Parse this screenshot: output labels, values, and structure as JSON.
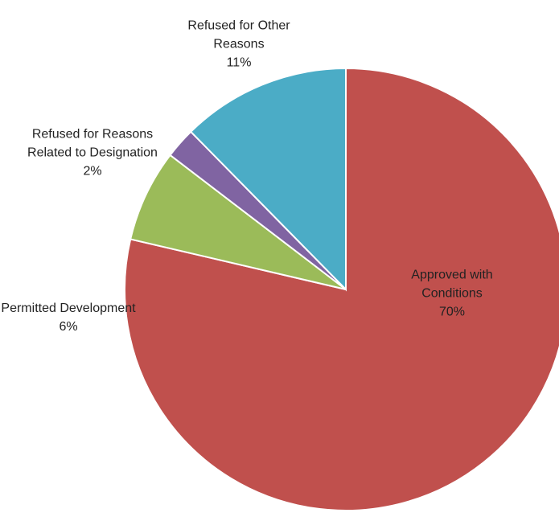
{
  "chart_data": {
    "type": "pie",
    "categories": [
      "Approved with Conditions",
      "Permitted Development",
      "Refused for Reasons Related to Designation",
      "Refused for Other Reasons"
    ],
    "values": [
      70,
      6,
      2,
      11
    ],
    "value_labels": [
      "70%",
      "6%",
      "2%",
      "11%"
    ],
    "colors": [
      "#c0504d",
      "#9bbb59",
      "#8064a2",
      "#4bacc6"
    ]
  }
}
